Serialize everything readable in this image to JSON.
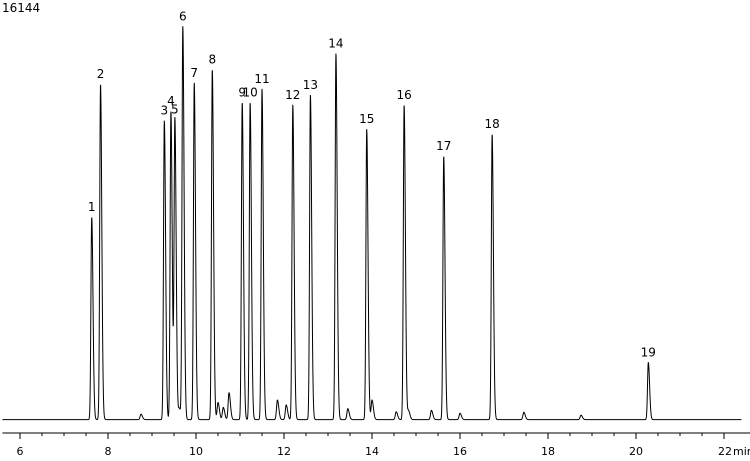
{
  "chart_data": {
    "type": "line",
    "y_max_label": "16144",
    "x_unit_label": "min",
    "xlim": [
      5.6,
      22.4
    ],
    "ylim": [
      0,
      16144
    ],
    "x_ticks": [
      6,
      8,
      10,
      12,
      14,
      16,
      18,
      20,
      22
    ],
    "x_tick_labels": [
      "6",
      "8",
      "10",
      "12",
      "14",
      "16",
      "18",
      "20",
      "22"
    ],
    "baseline": 180,
    "grid": false,
    "peaks": [
      {
        "label": "1",
        "rt": 7.63,
        "height": 8300
      },
      {
        "label": "2",
        "rt": 7.83,
        "height": 13750
      },
      {
        "label": "3",
        "rt": 9.28,
        "height": 12250
      },
      {
        "label": "4",
        "rt": 9.43,
        "height": 12650
      },
      {
        "label": "5",
        "rt": 9.52,
        "height": 12300
      },
      {
        "label": "6",
        "rt": 9.7,
        "height": 16100
      },
      {
        "label": "7",
        "rt": 9.96,
        "height": 13800
      },
      {
        "label": "8",
        "rt": 10.37,
        "height": 14350
      },
      {
        "label": "9",
        "rt": 11.05,
        "height": 13000
      },
      {
        "label": "10",
        "rt": 11.23,
        "height": 13000
      },
      {
        "label": "11",
        "rt": 11.5,
        "height": 13550
      },
      {
        "label": "12",
        "rt": 12.2,
        "height": 12900
      },
      {
        "label": "13",
        "rt": 12.6,
        "height": 13300
      },
      {
        "label": "14",
        "rt": 13.18,
        "height": 15000
      },
      {
        "label": "15",
        "rt": 13.88,
        "height": 11900
      },
      {
        "label": "16",
        "rt": 14.73,
        "height": 12900
      },
      {
        "label": "17",
        "rt": 15.63,
        "height": 10800
      },
      {
        "label": "18",
        "rt": 16.73,
        "height": 11700
      },
      {
        "label": "19",
        "rt": 20.28,
        "height": 2350
      }
    ],
    "minor_peaks": [
      {
        "rt": 8.75,
        "height": 220
      },
      {
        "rt": 9.62,
        "height": 450
      },
      {
        "rt": 10.5,
        "height": 700
      },
      {
        "rt": 10.62,
        "height": 500
      },
      {
        "rt": 10.75,
        "height": 1100
      },
      {
        "rt": 11.85,
        "height": 800
      },
      {
        "rt": 12.05,
        "height": 600
      },
      {
        "rt": 13.45,
        "height": 450
      },
      {
        "rt": 14.0,
        "height": 800
      },
      {
        "rt": 14.55,
        "height": 320
      },
      {
        "rt": 14.83,
        "height": 360
      },
      {
        "rt": 15.35,
        "height": 380
      },
      {
        "rt": 16.0,
        "height": 260
      },
      {
        "rt": 17.45,
        "height": 300
      },
      {
        "rt": 18.75,
        "height": 180
      }
    ]
  }
}
